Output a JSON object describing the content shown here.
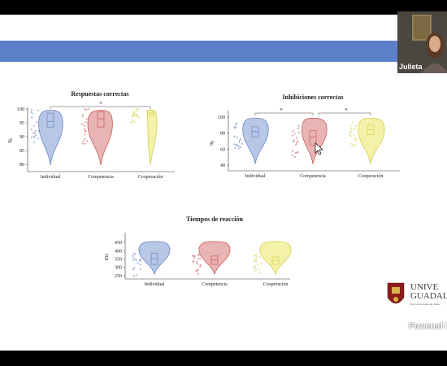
{
  "participant": {
    "name": "Julieta"
  },
  "overlay": {
    "powered": "Powered I"
  },
  "logo": {
    "line1": "UNIVE",
    "line2": "GUADAL",
    "sub": "Red Universitaria de Jalisco"
  },
  "charts": {
    "respuestas": {
      "title": "Respuestas correctas",
      "ylabel": "%",
      "yticks": [
        "100",
        "95",
        "90",
        "85",
        "80"
      ],
      "categories": [
        "Individual",
        "Competencia",
        "Cooperación"
      ],
      "sig": "*"
    },
    "inhibiciones": {
      "title": "Inhibiciones correctas",
      "ylabel": "%",
      "yticks": [
        "100",
        "80",
        "60",
        "40"
      ],
      "categories": [
        "Individual",
        "Competencia",
        "Cooperación"
      ],
      "sig1": "*",
      "sig2": "*"
    },
    "tiempos": {
      "title": "Tiempos de reacción",
      "ylabel": "ms",
      "yticks": [
        "450",
        "400",
        "350",
        "300",
        "250"
      ],
      "categories": [
        "Individual",
        "Competencia",
        "Cooperación"
      ]
    }
  },
  "chart_data": [
    {
      "type": "violin",
      "title": "Respuestas correctas",
      "ylabel": "%",
      "ylim": [
        78,
        100
      ],
      "categories": [
        "Individual",
        "Competencia",
        "Cooperación"
      ],
      "medians": [
        95.5,
        96.5,
        98.5
      ],
      "q1": [
        93.5,
        93.5,
        97.5
      ],
      "q3": [
        98.5,
        99,
        99.5
      ],
      "colors": [
        "#9fb4dd",
        "#e29b9b",
        "#f0ec8e"
      ]
    },
    {
      "type": "violin",
      "title": "Inhibiciones correctas",
      "ylabel": "%",
      "ylim": [
        35,
        100
      ],
      "categories": [
        "Individual",
        "Competencia",
        "Cooperación"
      ],
      "medians": [
        82,
        75,
        84
      ],
      "q1": [
        75,
        65,
        78
      ],
      "q3": [
        88,
        83,
        90
      ],
      "colors": [
        "#9fb4dd",
        "#e29b9b",
        "#f0ec8e"
      ]
    },
    {
      "type": "violin",
      "title": "Tiempos de reacción",
      "ylabel": "ms",
      "ylim": [
        240,
        460
      ],
      "categories": [
        "Individual",
        "Competencia",
        "Cooperación"
      ],
      "medians": [
        352,
        345,
        340
      ],
      "q1": [
        318,
        318,
        318
      ],
      "q3": [
        385,
        368,
        362
      ],
      "colors": [
        "#9fb4dd",
        "#e29b9b",
        "#f0ec8e"
      ]
    }
  ]
}
